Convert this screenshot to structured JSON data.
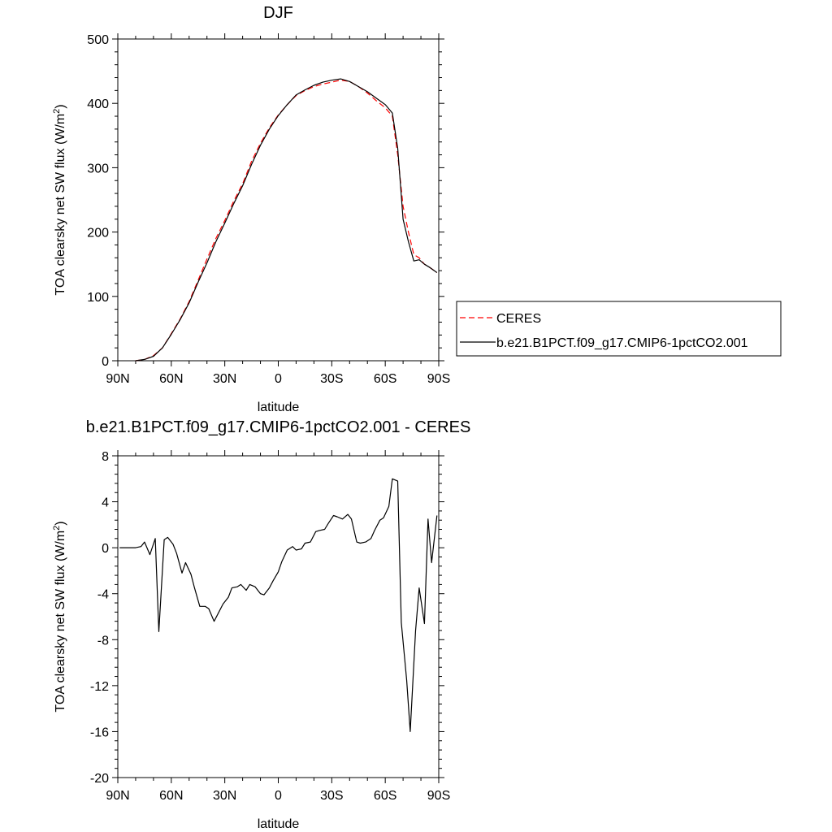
{
  "chart_data": [
    {
      "type": "line",
      "title": "DJF",
      "xlabel": "latitude",
      "ylabel": "TOA clearsky net SW flux (W/m",
      "ylabel_sup": "2",
      "ylabel_close": ")",
      "xlim": [
        90,
        -90
      ],
      "ylim": [
        0,
        500
      ],
      "x_ticks": [
        {
          "value": 90,
          "label": "90N"
        },
        {
          "value": 60,
          "label": "60N"
        },
        {
          "value": 30,
          "label": "30N"
        },
        {
          "value": 0,
          "label": "0"
        },
        {
          "value": -30,
          "label": "30S"
        },
        {
          "value": -60,
          "label": "60S"
        },
        {
          "value": -90,
          "label": "90S"
        }
      ],
      "y_ticks": [
        0,
        100,
        200,
        300,
        400,
        500
      ],
      "legend": {
        "placement": "right",
        "entries": [
          {
            "label": "CERES",
            "color": "#ff0000",
            "dash": true
          },
          {
            "label": "b.e21.B1PCT.f09_g17.CMIP6-1pctCO2.001",
            "color": "#000000",
            "dash": false
          }
        ]
      },
      "series": [
        {
          "name": "CERES",
          "color": "#ff0000",
          "dash": true,
          "x": [
            80,
            75,
            70,
            65,
            60,
            55,
            50,
            45,
            40,
            35,
            30,
            25,
            20,
            15,
            10,
            5,
            0,
            -5,
            -10,
            -15,
            -20,
            -25,
            -30,
            -35,
            -40,
            -45,
            -50,
            -55,
            -60,
            -64,
            -67,
            -70,
            -73,
            -76,
            -79,
            -82,
            -85,
            -89
          ],
          "values": [
            0,
            2,
            8,
            20,
            42,
            65,
            92,
            125,
            158,
            190,
            218,
            248,
            275,
            310,
            338,
            362,
            382,
            398,
            412,
            420,
            426,
            430,
            433,
            436,
            434,
            426,
            416,
            404,
            393,
            380,
            320,
            240,
            200,
            165,
            160,
            150,
            145,
            137
          ]
        },
        {
          "name": "b.e21.B1PCT.f09_g17.CMIP6-1pctCO2.001",
          "color": "#000000",
          "dash": false,
          "x": [
            80,
            75,
            70,
            65,
            60,
            55,
            50,
            45,
            40,
            35,
            30,
            25,
            20,
            15,
            10,
            5,
            0,
            -5,
            -10,
            -15,
            -20,
            -25,
            -30,
            -35,
            -40,
            -45,
            -50,
            -55,
            -60,
            -64,
            -67,
            -70,
            -73,
            -76,
            -79,
            -82,
            -85,
            -89
          ],
          "values": [
            0,
            2,
            7,
            20,
            41,
            64,
            90,
            122,
            152,
            185,
            214,
            244,
            272,
            305,
            335,
            360,
            381,
            398,
            413,
            421,
            428,
            433,
            436,
            438,
            434,
            426,
            418,
            408,
            398,
            385,
            330,
            220,
            185,
            155,
            157,
            150,
            145,
            137
          ]
        }
      ]
    },
    {
      "type": "line",
      "title": "b.e21.B1PCT.f09_g17.CMIP6-1pctCO2.001 - CERES",
      "xlabel": "latitude",
      "ylabel": "TOA clearsky net SW flux (W/m",
      "ylabel_sup": "2",
      "ylabel_close": ")",
      "xlim": [
        90,
        -90
      ],
      "ylim": [
        -20,
        8
      ],
      "x_ticks": [
        {
          "value": 90,
          "label": "90N"
        },
        {
          "value": 60,
          "label": "60N"
        },
        {
          "value": 30,
          "label": "30N"
        },
        {
          "value": 0,
          "label": "0"
        },
        {
          "value": -30,
          "label": "30S"
        },
        {
          "value": -60,
          "label": "60S"
        },
        {
          "value": -90,
          "label": "90S"
        }
      ],
      "y_ticks": [
        -20,
        -16,
        -12,
        -8,
        -4,
        0,
        4,
        8
      ],
      "series": [
        {
          "name": "",
          "color": "#000000",
          "dash": false,
          "x": [
            89,
            86,
            83,
            80,
            77,
            75,
            72,
            69,
            67,
            64,
            62,
            59,
            57,
            54,
            52,
            49,
            47,
            44,
            41,
            39,
            36,
            34,
            31,
            28,
            26,
            23,
            21,
            18,
            16,
            13,
            10,
            8,
            5,
            3,
            0,
            -2,
            -5,
            -8,
            -10,
            -13,
            -15,
            -18,
            -21,
            -23,
            -26,
            -28,
            -31,
            -33,
            -36,
            -39,
            -41,
            -44,
            -46,
            -49,
            -52,
            -54,
            -57,
            -59,
            -62,
            -64,
            -67,
            -69,
            -72,
            -74,
            -77,
            -79,
            -82,
            -84,
            -86,
            -89
          ],
          "values": [
            0,
            0,
            0,
            0,
            0.1,
            0.5,
            -0.6,
            0.8,
            -7.3,
            0.7,
            0.9,
            0.3,
            -0.5,
            -2.2,
            -1.3,
            -2.3,
            -3.5,
            -5.1,
            -5.1,
            -5.3,
            -6.4,
            -5.8,
            -4.9,
            -4.3,
            -3.5,
            -3.4,
            -3.2,
            -3.7,
            -3.2,
            -3.4,
            -4.0,
            -4.1,
            -3.5,
            -2.9,
            -2.1,
            -1.2,
            -0.2,
            0.1,
            -0.2,
            -0.1,
            0.4,
            0.5,
            1.4,
            1.5,
            1.6,
            2.1,
            2.8,
            2.7,
            2.5,
            2.9,
            2.5,
            0.5,
            0.4,
            0.5,
            0.8,
            1.5,
            2.4,
            2.6,
            3.6,
            6.0,
            5.8,
            -6.5,
            -11.5,
            -16.0,
            -7.2,
            -3.5,
            -6.6,
            2.5,
            -1.3,
            2.8
          ]
        }
      ]
    }
  ]
}
